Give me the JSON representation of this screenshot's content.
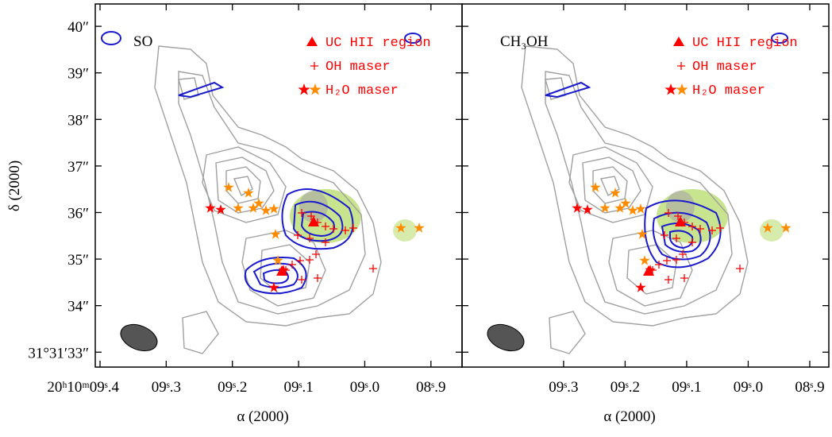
{
  "chart_data": [
    {
      "type": "contour",
      "label": "SO",
      "xlabel": "α (2000)",
      "ylabel": "δ (2000)",
      "xlim": [
        9.4072,
        8.853
      ],
      "ylim": [
        32.68,
        40.48
      ],
      "xticks": [
        {
          "value": 9.4,
          "label": "20ʰ10ᵐ09ˢ.4"
        },
        {
          "value": 9.3,
          "label": "09ˢ.3"
        },
        {
          "value": 9.2,
          "label": "09ˢ.2"
        },
        {
          "value": 9.1,
          "label": "09ˢ.1"
        },
        {
          "value": 9.0,
          "label": "09ˢ.0"
        },
        {
          "value": 8.9,
          "label": "08ˢ.9"
        }
      ],
      "yticks": [
        {
          "value": 40,
          "label": "40″"
        },
        {
          "value": 39,
          "label": "39″"
        },
        {
          "value": 38,
          "label": "38″"
        },
        {
          "value": 37,
          "label": "37″"
        },
        {
          "value": 36,
          "label": "36″"
        },
        {
          "value": 35,
          "label": "35″"
        },
        {
          "value": 34,
          "label": "34″"
        },
        {
          "value": 33,
          "label": "31°31′33″"
        }
      ],
      "legend": [
        {
          "name": "UC HII region",
          "colors": [
            "#ff0000"
          ]
        },
        {
          "name": "OH maser",
          "colors": [
            "#ff0000"
          ]
        },
        {
          "name": "H₂O maser",
          "colors": [
            "#ff0000",
            "#ff8c00"
          ]
        }
      ]
    },
    {
      "type": "contour",
      "label": "CH₃OH",
      "xlabel": "α (2000)",
      "xlim": [
        9.465,
        8.869
      ],
      "ylim": [
        32.68,
        40.48
      ],
      "xticks": [
        {
          "value": 9.3,
          "label": "09ˢ.3"
        },
        {
          "value": 9.2,
          "label": "09ˢ.2"
        },
        {
          "value": 9.1,
          "label": "09ˢ.1"
        },
        {
          "value": 9.0,
          "label": "09ˢ.0"
        },
        {
          "value": 8.9,
          "label": "08ˢ.9"
        }
      ],
      "legend": [
        {
          "name": "UC HII region",
          "colors": [
            "#ff0000"
          ]
        },
        {
          "name": "OH maser",
          "colors": [
            "#ff0000"
          ]
        },
        {
          "name": "H₂O maser",
          "colors": [
            "#ff0000",
            "#ff8c00"
          ]
        }
      ]
    }
  ]
}
